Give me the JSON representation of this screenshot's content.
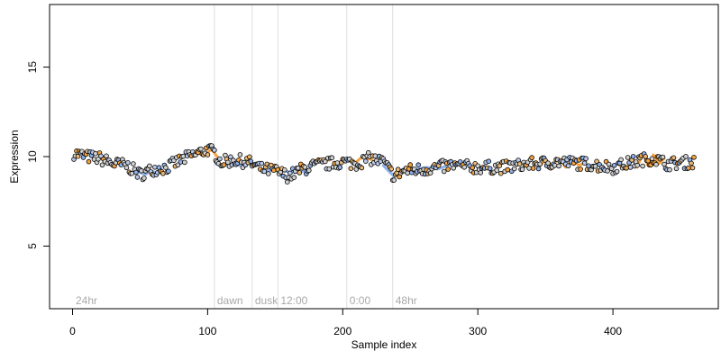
{
  "chart_data": {
    "type": "scatter",
    "title": "",
    "xlabel": "Sample index",
    "ylabel": "Expression",
    "xlim": [
      -17,
      478
    ],
    "ylim": [
      1.5,
      18.5
    ],
    "xticks": [
      0,
      100,
      200,
      300,
      400
    ],
    "yticks": [
      5,
      10,
      15
    ],
    "grid": false,
    "legend": "none",
    "vlines": [
      {
        "x": 105,
        "label": "dawn"
      },
      {
        "x": 133,
        "label": "dusk"
      },
      {
        "x": 152,
        "label": "12:00"
      },
      {
        "x": 203,
        "label": "0:00"
      },
      {
        "x": 237,
        "label": "48hr"
      }
    ],
    "corner_label": "24hr",
    "points": {
      "count": 460,
      "anchors": [
        [
          1,
          10.2
        ],
        [
          10,
          10.0
        ],
        [
          20,
          9.9
        ],
        [
          30,
          9.6
        ],
        [
          40,
          9.5
        ],
        [
          50,
          9.0
        ],
        [
          60,
          9.3
        ],
        [
          70,
          9.4
        ],
        [
          80,
          9.8
        ],
        [
          90,
          10.1
        ],
        [
          100,
          10.4
        ],
        [
          105,
          10.2
        ],
        [
          110,
          9.7
        ],
        [
          120,
          9.8
        ],
        [
          130,
          9.7
        ],
        [
          140,
          9.3
        ],
        [
          150,
          9.2
        ],
        [
          160,
          8.9
        ],
        [
          170,
          9.3
        ],
        [
          180,
          9.5
        ],
        [
          190,
          9.6
        ],
        [
          200,
          9.7
        ],
        [
          210,
          9.6
        ],
        [
          220,
          9.9
        ],
        [
          230,
          9.7
        ],
        [
          238,
          8.9
        ],
        [
          245,
          9.2
        ],
        [
          260,
          9.3
        ],
        [
          280,
          9.5
        ],
        [
          300,
          9.4
        ],
        [
          320,
          9.4
        ],
        [
          340,
          9.6
        ],
        [
          360,
          9.7
        ],
        [
          380,
          9.6
        ],
        [
          400,
          9.4
        ],
        [
          420,
          9.8
        ],
        [
          430,
          9.9
        ],
        [
          440,
          9.6
        ],
        [
          460,
          9.7
        ]
      ],
      "noise": 0.35
    },
    "curves": [
      {
        "color": "#f4a340",
        "x": [
          99,
          101,
          103,
          105,
          107,
          109
        ],
        "y": [
          10.1,
          10.3,
          10.4,
          10.2,
          10.0,
          9.8
        ]
      },
      {
        "color": "#f4a340",
        "x": [
          178,
          182,
          186,
          190
        ],
        "y": [
          9.8,
          9.7,
          9.9,
          9.8
        ]
      },
      {
        "color": "#f4a340",
        "x": [
          210,
          213,
          216,
          219,
          222
        ],
        "y": [
          9.7,
          9.9,
          10.0,
          9.9,
          9.8
        ]
      },
      {
        "color": "#f4a340",
        "x": [
          345,
          350,
          355,
          360,
          365,
          370,
          375,
          380
        ],
        "y": [
          9.4,
          9.8,
          9.5,
          9.9,
          9.4,
          9.8,
          9.5,
          9.7
        ]
      },
      {
        "color": "#f4a340",
        "x": [
          405,
          410,
          414,
          418,
          422,
          426,
          430,
          434,
          438
        ],
        "y": [
          9.5,
          9.3,
          9.9,
          9.4,
          10.2,
          9.5,
          10.1,
          9.6,
          9.9
        ]
      },
      {
        "color": "#8fb0e8",
        "x": [
          46,
          50,
          54,
          58,
          62,
          66
        ],
        "y": [
          9.3,
          9.1,
          9.0,
          9.2,
          9.1,
          9.3
        ]
      },
      {
        "color": "#8fb0e8",
        "x": [
          106,
          112,
          118,
          124,
          130
        ],
        "y": [
          9.6,
          9.5,
          9.6,
          9.5,
          9.6
        ]
      },
      {
        "color": "#8fb0e8",
        "x": [
          140,
          148,
          156,
          164,
          172
        ],
        "y": [
          9.3,
          9.2,
          9.2,
          9.1,
          9.2
        ]
      },
      {
        "color": "#8fb0e8",
        "x": [
          230,
          234,
          238,
          242,
          246
        ],
        "y": [
          9.5,
          9.2,
          8.9,
          9.1,
          9.4
        ]
      },
      {
        "color": "#8fb0e8",
        "x": [
          255,
          262,
          270,
          278
        ],
        "y": [
          9.3,
          9.4,
          9.3,
          9.5
        ]
      }
    ],
    "colors": {
      "orange": "#f4a340",
      "blue": "#8fb0e8",
      "gray": "#d0d0d0",
      "vline": "#dedede",
      "label": "#a9a9a9"
    }
  }
}
